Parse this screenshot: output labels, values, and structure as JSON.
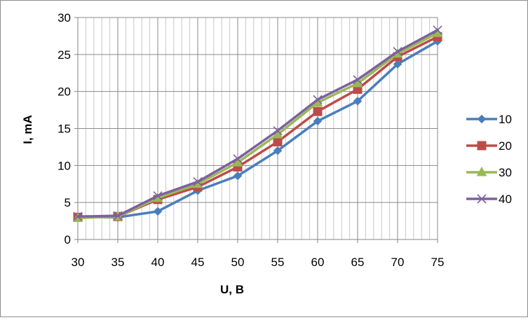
{
  "chart_data": {
    "type": "line",
    "title": "",
    "xlabel": "U, B",
    "ylabel": "I, mA",
    "xlim": [
      30,
      75
    ],
    "ylim": [
      0,
      30
    ],
    "x_ticks": [
      30,
      35,
      40,
      45,
      50,
      55,
      60,
      65,
      70,
      75
    ],
    "y_ticks": [
      0,
      5,
      10,
      15,
      20,
      25,
      30
    ],
    "grid": true,
    "legend_position": "right",
    "series": [
      {
        "name": "10",
        "color": "#4a7ebb",
        "marker": "diamond",
        "x": [
          30,
          35,
          40,
          45,
          50,
          55,
          60,
          65,
          70,
          75
        ],
        "y": [
          3.0,
          3.0,
          3.8,
          6.6,
          8.6,
          12.0,
          16.0,
          18.7,
          23.7,
          26.8
        ]
      },
      {
        "name": "20",
        "color": "#be4b48",
        "marker": "square",
        "x": [
          30,
          35,
          40,
          45,
          50,
          55,
          60,
          65,
          70,
          75
        ],
        "y": [
          3.0,
          3.1,
          5.4,
          7.1,
          9.8,
          13.2,
          17.3,
          20.3,
          24.7,
          27.4
        ]
      },
      {
        "name": "30",
        "color": "#98b954",
        "marker": "triangle",
        "x": [
          30,
          35,
          40,
          45,
          50,
          55,
          60,
          65,
          70,
          75
        ],
        "y": [
          2.9,
          3.1,
          5.6,
          7.5,
          10.4,
          14.2,
          18.5,
          21.1,
          25.1,
          27.9
        ]
      },
      {
        "name": "40",
        "color": "#7d60a0",
        "marker": "x",
        "x": [
          30,
          35,
          40,
          45,
          50,
          55,
          60,
          65,
          70,
          75
        ],
        "y": [
          3.1,
          3.2,
          5.9,
          7.8,
          10.9,
          14.7,
          18.9,
          21.6,
          25.4,
          28.3
        ]
      }
    ]
  }
}
